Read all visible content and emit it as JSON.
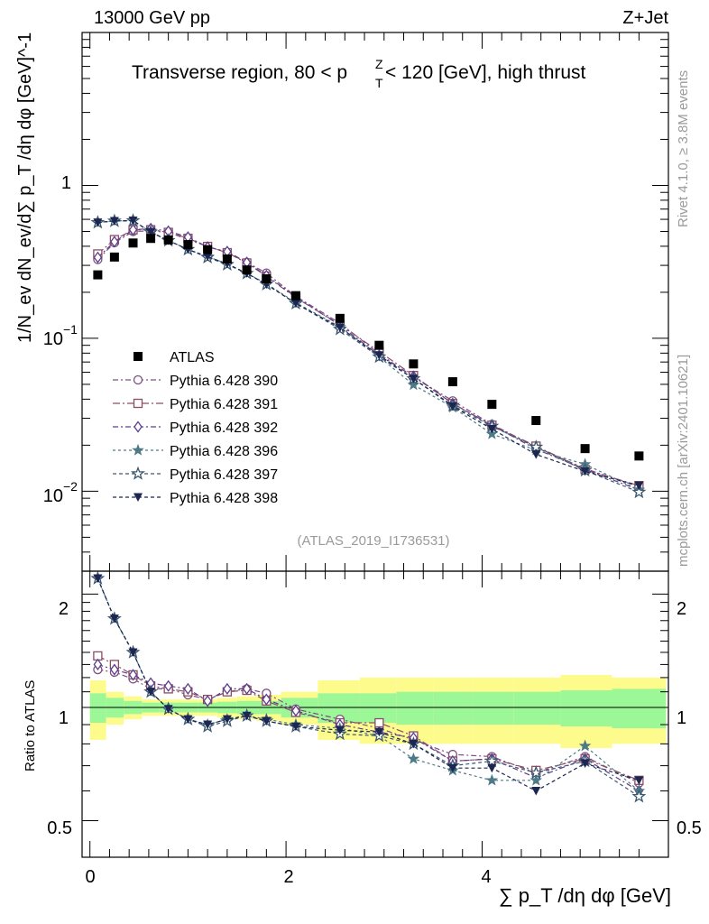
{
  "header": {
    "left": "13000 GeV pp",
    "right": "Z+Jet",
    "title": "Transverse region, 80 < p",
    "title_sub": "T",
    "title_sup": "Z",
    "title_tail": " < 120 [GeV], high thrust",
    "watermark": "(ATLAS_2019_I1736531)",
    "side_top": "Rivet 4.1.0, ≥ 3.8M events",
    "side_bottom": "mcplots.cern.ch [arXiv:2401.10621]"
  },
  "axes": {
    "ylabel_main": "1/N_ev dN_ev/d∑ p_T /dη dφ [GeV]^-1",
    "ylabel_ratio": "Ratio to ATLAS",
    "xlabel": "∑ p_T /dη dφ [GeV]",
    "main_ytick_labels": [
      "1",
      "10",
      "10"
    ],
    "main_ytick_exps": [
      "",
      "−1",
      "−2"
    ],
    "ratio_ytick_labels": [
      "2",
      "1",
      "0.5"
    ],
    "xtick_labels": [
      "0",
      "2",
      "4"
    ]
  },
  "legend": [
    {
      "label": "ATLAS"
    },
    {
      "label": "Pythia 6.428 390"
    },
    {
      "label": "Pythia 6.428 391"
    },
    {
      "label": "Pythia 6.428 392"
    },
    {
      "label": "Pythia 6.428 396"
    },
    {
      "label": "Pythia 6.428 397"
    },
    {
      "label": "Pythia 6.428 398"
    }
  ],
  "chart_data": {
    "type": "scatter",
    "title": "Transverse region, 80 < pT^Z < 120 [GeV], high thrust",
    "xlabel": "∑ pT /dη dφ [GeV]",
    "ylabel": "1/Nev dNev/d∑ pT /dη dφ [GeV]^-1",
    "xlim": [
      -0.08,
      5.9
    ],
    "ylim": [
      0.003,
      10
    ],
    "yscale": "log",
    "ratio_ylim": [
      0.4,
      2.3
    ],
    "x": [
      0.08,
      0.25,
      0.44,
      0.62,
      0.8,
      1.0,
      1.2,
      1.4,
      1.6,
      1.8,
      2.1,
      2.55,
      2.95,
      3.3,
      3.7,
      4.1,
      4.55,
      5.05,
      5.6
    ],
    "atlas": [
      0.26,
      0.34,
      0.42,
      0.45,
      0.44,
      0.41,
      0.38,
      0.33,
      0.28,
      0.245,
      0.19,
      0.135,
      0.09,
      0.068,
      0.052,
      0.037,
      0.029,
      0.019,
      0.017
    ],
    "atlas_band_yellow": [
      0.18,
      0.1,
      0.07,
      0.05,
      0.05,
      0.05,
      0.05,
      0.06,
      0.07,
      0.08,
      0.1,
      0.18,
      0.2,
      0.2,
      0.2,
      0.2,
      0.2,
      0.22,
      0.2
    ],
    "atlas_band_green": [
      0.09,
      0.06,
      0.04,
      0.03,
      0.03,
      0.03,
      0.03,
      0.035,
      0.04,
      0.04,
      0.06,
      0.09,
      0.09,
      0.1,
      0.1,
      0.1,
      0.1,
      0.11,
      0.12
    ],
    "series": [
      {
        "name": "Pythia 6.428 390",
        "color": "#7b4f82",
        "marker": "circle-open",
        "dash": "6,3,2,3",
        "ratio": [
          1.26,
          1.24,
          1.19,
          1.12,
          1.12,
          1.08,
          1.05,
          1.1,
          1.12,
          1.09,
          0.99,
          0.93,
          0.88,
          0.82,
          0.75,
          0.74,
          0.67,
          0.74,
          0.63
        ]
      },
      {
        "name": "Pythia 6.428 391",
        "color": "#8a4e64",
        "marker": "square-open",
        "dash": "8,3,2,3",
        "ratio": [
          1.37,
          1.3,
          1.22,
          1.14,
          1.12,
          1.1,
          1.05,
          1.1,
          1.11,
          1.04,
          0.97,
          0.91,
          0.91,
          0.84,
          0.72,
          0.73,
          0.68,
          0.73,
          0.64
        ]
      },
      {
        "name": "Pythia 6.428 392",
        "color": "#5d3d8e",
        "marker": "diamond-open",
        "dash": "6,3,2,3",
        "ratio": [
          1.3,
          1.26,
          1.22,
          1.16,
          1.14,
          1.12,
          1.04,
          1.12,
          1.12,
          1.05,
          0.98,
          0.9,
          0.86,
          0.83,
          0.72,
          0.73,
          0.65,
          0.73,
          0.6
        ]
      },
      {
        "name": "Pythia 6.428 396",
        "color": "#4d7a86",
        "marker": "star-filled",
        "dash": "3,3",
        "ratio": [
          2.2,
          1.72,
          1.4,
          1.1,
          0.99,
          0.93,
          0.9,
          0.93,
          0.95,
          0.93,
          0.9,
          0.88,
          0.84,
          0.73,
          0.68,
          0.64,
          0.64,
          0.79,
          0.6
        ]
      },
      {
        "name": "Pythia 6.428 397",
        "color": "#3a5870",
        "marker": "star-open",
        "dash": "4,3",
        "ratio": [
          2.2,
          1.72,
          1.4,
          1.1,
          0.99,
          0.93,
          0.89,
          0.92,
          0.95,
          0.92,
          0.89,
          0.85,
          0.84,
          0.8,
          0.7,
          0.72,
          0.67,
          0.72,
          0.58
        ]
      },
      {
        "name": "Pythia 6.428 398",
        "color": "#1c2650",
        "marker": "tri-down",
        "dash": "4,3",
        "ratio": [
          2.2,
          1.72,
          1.4,
          1.1,
          0.99,
          0.93,
          0.9,
          0.93,
          0.95,
          0.92,
          0.89,
          0.87,
          0.86,
          0.8,
          0.69,
          0.69,
          0.6,
          0.71,
          0.64
        ]
      }
    ]
  }
}
